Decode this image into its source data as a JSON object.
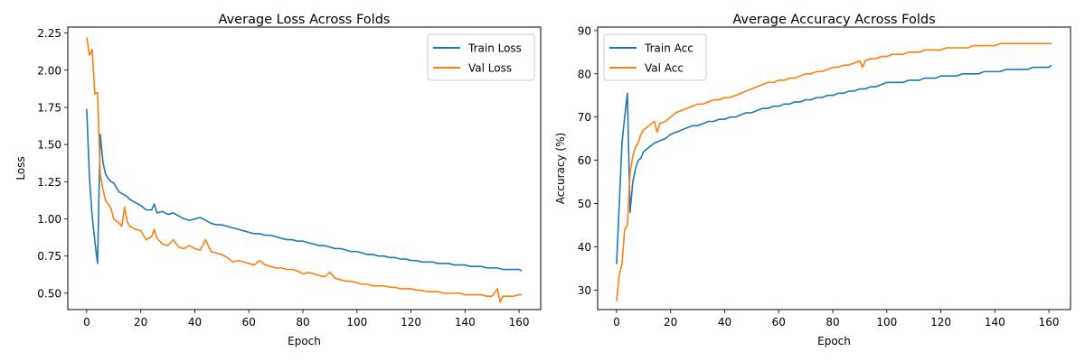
{
  "chart_data": [
    {
      "type": "line",
      "title": "Average Loss Across Folds",
      "xlabel": "Epoch",
      "ylabel": "Loss",
      "xlim": [
        -7,
        168
      ],
      "ylim": [
        0.39,
        2.29
      ],
      "xticks": [
        0,
        20,
        40,
        60,
        80,
        100,
        120,
        140,
        160
      ],
      "yticks": [
        0.5,
        0.75,
        1.0,
        1.25,
        1.5,
        1.75,
        2.0,
        2.25
      ],
      "ytick_labels": [
        "0.50",
        "0.75",
        "1.00",
        "1.25",
        "1.50",
        "1.75",
        "2.00",
        "2.25"
      ],
      "grid": false,
      "legend_position": "top-right",
      "series": [
        {
          "name": "Train Loss",
          "color": "#1f77b4",
          "x": [
            0,
            1,
            2,
            3,
            4,
            5,
            6,
            7,
            8,
            9,
            10,
            12,
            14,
            15,
            16,
            18,
            20,
            22,
            24,
            25,
            26,
            28,
            30,
            32,
            34,
            36,
            38,
            40,
            42,
            44,
            46,
            48,
            50,
            52,
            54,
            56,
            58,
            60,
            62,
            64,
            66,
            68,
            70,
            72,
            74,
            76,
            78,
            80,
            82,
            84,
            86,
            88,
            90,
            92,
            94,
            96,
            98,
            100,
            102,
            104,
            106,
            108,
            110,
            112,
            114,
            116,
            118,
            120,
            122,
            124,
            126,
            128,
            130,
            132,
            134,
            136,
            138,
            140,
            142,
            144,
            146,
            148,
            150,
            152,
            154,
            156,
            158,
            160,
            161
          ],
          "values": [
            1.74,
            1.28,
            1.02,
            0.85,
            0.7,
            1.57,
            1.38,
            1.3,
            1.27,
            1.25,
            1.24,
            1.18,
            1.16,
            1.15,
            1.13,
            1.11,
            1.09,
            1.06,
            1.06,
            1.1,
            1.04,
            1.05,
            1.03,
            1.04,
            1.02,
            1.0,
            0.99,
            1.0,
            1.01,
            0.99,
            0.97,
            0.96,
            0.96,
            0.95,
            0.94,
            0.93,
            0.92,
            0.91,
            0.9,
            0.9,
            0.89,
            0.89,
            0.88,
            0.87,
            0.86,
            0.86,
            0.85,
            0.85,
            0.84,
            0.83,
            0.82,
            0.82,
            0.81,
            0.8,
            0.8,
            0.79,
            0.78,
            0.78,
            0.77,
            0.76,
            0.76,
            0.75,
            0.75,
            0.74,
            0.74,
            0.73,
            0.73,
            0.72,
            0.72,
            0.71,
            0.71,
            0.71,
            0.7,
            0.7,
            0.7,
            0.69,
            0.69,
            0.69,
            0.68,
            0.68,
            0.68,
            0.67,
            0.67,
            0.67,
            0.66,
            0.66,
            0.66,
            0.66,
            0.65
          ]
        },
        {
          "name": "Val Loss",
          "color": "#ff7f0e",
          "x": [
            0,
            1,
            2,
            3,
            4,
            5,
            6,
            7,
            8,
            9,
            10,
            12,
            13,
            14,
            15,
            16,
            18,
            20,
            22,
            24,
            25,
            26,
            28,
            30,
            32,
            34,
            36,
            38,
            40,
            42,
            44,
            46,
            48,
            50,
            52,
            54,
            56,
            58,
            60,
            62,
            64,
            66,
            68,
            70,
            72,
            74,
            76,
            78,
            80,
            82,
            84,
            86,
            88,
            90,
            92,
            94,
            96,
            98,
            100,
            102,
            104,
            106,
            108,
            110,
            112,
            114,
            116,
            118,
            120,
            122,
            124,
            126,
            128,
            130,
            132,
            134,
            136,
            138,
            140,
            142,
            144,
            146,
            148,
            150,
            152,
            153,
            154,
            156,
            158,
            160,
            161
          ],
          "values": [
            2.22,
            2.1,
            2.14,
            1.84,
            1.85,
            1.3,
            1.2,
            1.12,
            1.1,
            1.07,
            1.0,
            0.97,
            0.95,
            1.08,
            0.98,
            0.95,
            0.93,
            0.92,
            0.86,
            0.88,
            0.93,
            0.87,
            0.83,
            0.82,
            0.86,
            0.81,
            0.8,
            0.82,
            0.8,
            0.79,
            0.86,
            0.78,
            0.77,
            0.76,
            0.74,
            0.71,
            0.72,
            0.71,
            0.7,
            0.69,
            0.72,
            0.69,
            0.68,
            0.67,
            0.67,
            0.66,
            0.66,
            0.65,
            0.63,
            0.64,
            0.63,
            0.62,
            0.61,
            0.64,
            0.6,
            0.59,
            0.58,
            0.58,
            0.57,
            0.56,
            0.56,
            0.55,
            0.55,
            0.55,
            0.54,
            0.54,
            0.53,
            0.53,
            0.53,
            0.52,
            0.52,
            0.51,
            0.51,
            0.51,
            0.5,
            0.5,
            0.5,
            0.5,
            0.49,
            0.49,
            0.49,
            0.49,
            0.48,
            0.48,
            0.53,
            0.44,
            0.48,
            0.48,
            0.48,
            0.49,
            0.49
          ]
        }
      ]
    },
    {
      "type": "line",
      "title": "Average Accuracy Across Folds",
      "xlabel": "Epoch",
      "ylabel": "Accuracy (%)",
      "xlim": [
        -7,
        168
      ],
      "ylim": [
        25.5,
        90.8
      ],
      "xticks": [
        0,
        20,
        40,
        60,
        80,
        100,
        120,
        140,
        160
      ],
      "yticks": [
        30,
        40,
        50,
        60,
        70,
        80,
        90
      ],
      "ytick_labels": [
        "30",
        "40",
        "50",
        "60",
        "70",
        "80",
        "90"
      ],
      "grid": false,
      "legend_position": "top-left",
      "series": [
        {
          "name": "Train Acc",
          "color": "#1f77b4",
          "x": [
            0,
            1,
            2,
            3,
            4,
            5,
            6,
            7,
            8,
            9,
            10,
            12,
            14,
            16,
            18,
            20,
            22,
            24,
            26,
            28,
            30,
            32,
            34,
            36,
            38,
            40,
            42,
            44,
            46,
            48,
            50,
            52,
            54,
            56,
            58,
            60,
            62,
            64,
            66,
            68,
            70,
            72,
            74,
            76,
            78,
            80,
            82,
            84,
            86,
            88,
            90,
            92,
            94,
            96,
            98,
            100,
            102,
            104,
            106,
            108,
            110,
            112,
            114,
            116,
            118,
            120,
            122,
            124,
            126,
            128,
            130,
            132,
            134,
            136,
            138,
            140,
            142,
            144,
            146,
            148,
            150,
            152,
            154,
            156,
            158,
            160,
            161
          ],
          "values": [
            36,
            50,
            64,
            70,
            75.5,
            48,
            55,
            58,
            60,
            60.5,
            62,
            63,
            64,
            64.5,
            65,
            66,
            66.5,
            67,
            67.5,
            68,
            68,
            68.5,
            69,
            69,
            69.5,
            69.5,
            70,
            70,
            70.5,
            71,
            71,
            71.5,
            72,
            72,
            72.5,
            72.5,
            73,
            73,
            73.5,
            73.5,
            74,
            74,
            74.5,
            74.5,
            75,
            75,
            75.5,
            75.5,
            76,
            76,
            76.5,
            76.5,
            77,
            77,
            77.5,
            78,
            78,
            78,
            78,
            78.5,
            78.5,
            78.5,
            79,
            79,
            79,
            79.5,
            79.5,
            79.5,
            79.5,
            80,
            80,
            80,
            80,
            80.5,
            80.5,
            80.5,
            80.5,
            81,
            81,
            81,
            81,
            81,
            81.5,
            81.5,
            81.5,
            81.5,
            82
          ]
        },
        {
          "name": "Val Acc",
          "color": "#ff7f0e",
          "x": [
            0,
            1,
            2,
            3,
            4,
            5,
            6,
            7,
            8,
            9,
            10,
            12,
            14,
            15,
            16,
            18,
            20,
            22,
            24,
            26,
            28,
            30,
            32,
            34,
            36,
            38,
            40,
            42,
            44,
            46,
            48,
            50,
            52,
            54,
            56,
            58,
            60,
            62,
            64,
            66,
            68,
            70,
            72,
            74,
            76,
            78,
            80,
            82,
            84,
            86,
            88,
            90,
            91,
            92,
            94,
            96,
            98,
            100,
            102,
            104,
            106,
            108,
            110,
            112,
            114,
            116,
            118,
            120,
            122,
            124,
            126,
            128,
            130,
            132,
            134,
            136,
            138,
            140,
            142,
            144,
            146,
            148,
            150,
            152,
            154,
            156,
            158,
            160,
            161
          ],
          "values": [
            27.5,
            33.5,
            36,
            44,
            45,
            57,
            61,
            63,
            64,
            66,
            67,
            68,
            69,
            66.5,
            68.5,
            69,
            70,
            71,
            71.5,
            72,
            72.5,
            73,
            73,
            73.5,
            74,
            74,
            74.5,
            74.5,
            75,
            75.5,
            76,
            76.5,
            77,
            77.5,
            78,
            78,
            78.5,
            78.5,
            79,
            79,
            79.5,
            80,
            80,
            80.5,
            80.5,
            81,
            81.5,
            81.5,
            82,
            82,
            82.5,
            83,
            81.5,
            83,
            83.5,
            83.5,
            84,
            84,
            84.5,
            84.5,
            84.5,
            85,
            85,
            85,
            85.5,
            85.5,
            85.5,
            85.5,
            86,
            86,
            86,
            86,
            86,
            86.5,
            86.5,
            86.5,
            86.5,
            86.5,
            87,
            87,
            87,
            87,
            87,
            87,
            87,
            87,
            87,
            87,
            87
          ]
        }
      ]
    }
  ]
}
